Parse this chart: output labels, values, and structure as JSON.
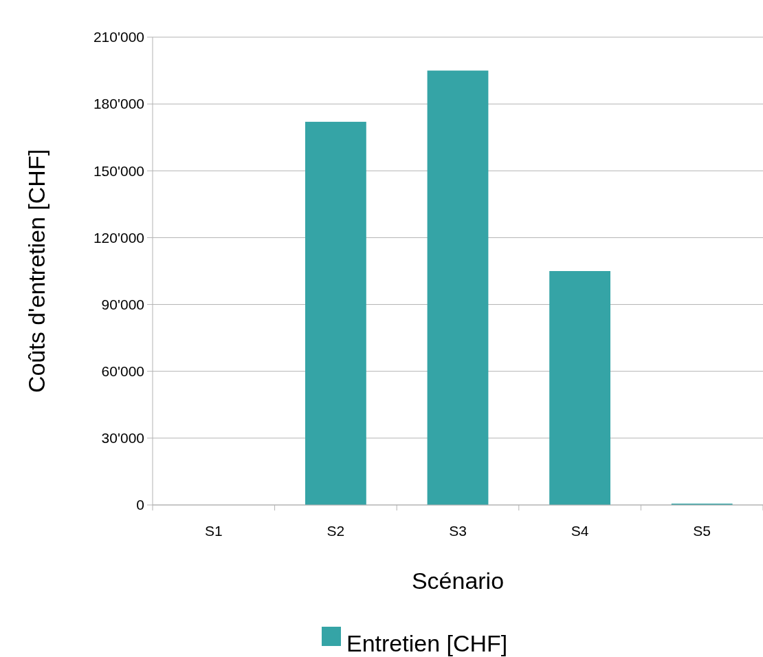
{
  "chart_data": {
    "type": "bar",
    "xlabel": "Scénario",
    "ylabel": "Coûts d'entretien [CHF]",
    "categories": [
      "S1",
      "S2",
      "S3",
      "S4",
      "S5"
    ],
    "series": [
      {
        "name": "Entretien [CHF]",
        "color": "#35a4a6",
        "values": [
          0,
          172000,
          195000,
          105000,
          600
        ]
      }
    ],
    "ylim": [
      0,
      210000
    ],
    "yticks": [
      {
        "value": 0,
        "label": "0"
      },
      {
        "value": 30000,
        "label": "30'000"
      },
      {
        "value": 60000,
        "label": "60'000"
      },
      {
        "value": 90000,
        "label": "90'000"
      },
      {
        "value": 120000,
        "label": "120'000"
      },
      {
        "value": 150000,
        "label": "150'000"
      },
      {
        "value": 180000,
        "label": "180'000"
      },
      {
        "value": 210000,
        "label": "210'000"
      }
    ],
    "grid": "y",
    "legend": "bottom"
  }
}
